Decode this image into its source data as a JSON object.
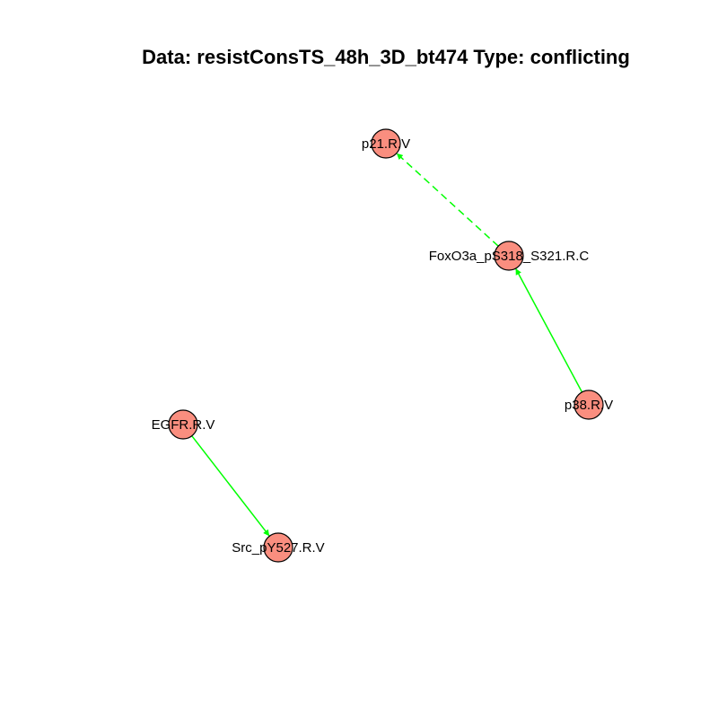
{
  "title": "Data: resistConsTS_48h_3D_bt474 Type: conflicting",
  "colors": {
    "node_fill": "#fa8e7f",
    "node_stroke": "#000000",
    "edge": "#00ff00",
    "background": "#ffffff"
  },
  "nodes": [
    {
      "id": "p21",
      "label": "p21.R.V"
    },
    {
      "id": "foxo3a",
      "label": "FoxO3a_pS318_S321.R.C"
    },
    {
      "id": "p38",
      "label": "p38.R.V"
    },
    {
      "id": "egfr",
      "label": "EGFR.R.V"
    },
    {
      "id": "src",
      "label": "Src_pY527.R.V"
    }
  ],
  "edges": [
    {
      "from": "foxo3a",
      "to": "p21",
      "style": "dashed",
      "arrow": true
    },
    {
      "from": "p38",
      "to": "foxo3a",
      "style": "solid",
      "arrow": true
    },
    {
      "from": "egfr",
      "to": "src",
      "style": "solid",
      "arrow": true
    }
  ]
}
